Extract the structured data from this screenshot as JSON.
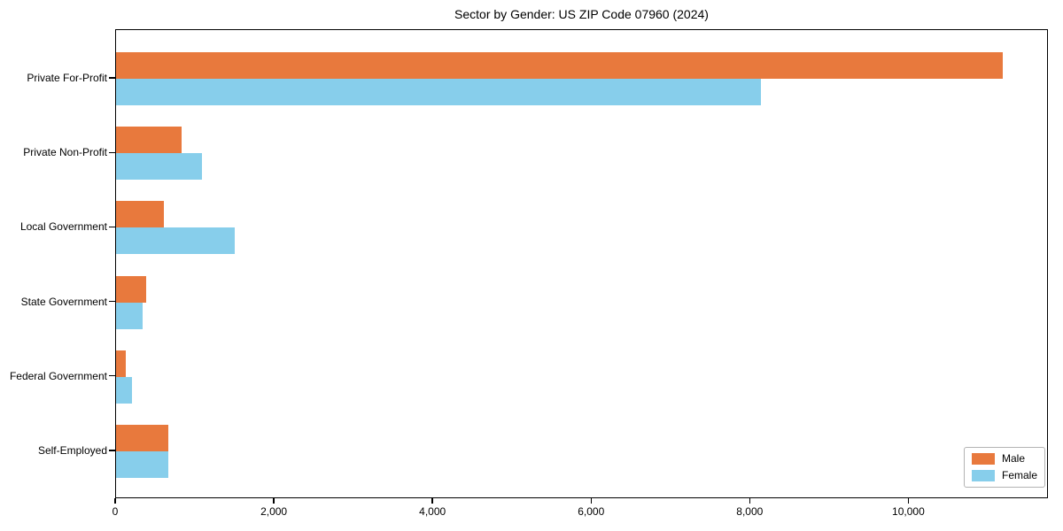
{
  "title": "Sector by Gender: US ZIP Code 07960 (2024)",
  "colors": {
    "male": "#E8793D",
    "female": "#87CEEB",
    "axis": "#000000",
    "legend_border": "#b3b3b3",
    "background": "#ffffff"
  },
  "legend": {
    "items": [
      {
        "label": "Male",
        "color": "#E8793D"
      },
      {
        "label": "Female",
        "color": "#87CEEB"
      }
    ]
  },
  "chart_data": {
    "type": "bar",
    "orientation": "horizontal",
    "title": "Sector by Gender: US ZIP Code 07960 (2024)",
    "categories": [
      "Private For-Profit",
      "Private Non-Profit",
      "Local Government",
      "State Government",
      "Federal Government",
      "Self-Employed"
    ],
    "series": [
      {
        "name": "Male",
        "color": "#E8793D",
        "values": [
          11200,
          830,
          600,
          380,
          120,
          660
        ]
      },
      {
        "name": "Female",
        "color": "#87CEEB",
        "values": [
          8150,
          1080,
          1500,
          340,
          200,
          660
        ]
      }
    ],
    "xlabel": "",
    "ylabel": "",
    "xlim": [
      0,
      11760
    ],
    "xticks": [
      0,
      2000,
      4000,
      6000,
      8000,
      10000
    ],
    "xtick_labels": [
      "0",
      "2,000",
      "4,000",
      "6,000",
      "8,000",
      "10,000"
    ],
    "grid": false,
    "legend_position": "lower right"
  }
}
